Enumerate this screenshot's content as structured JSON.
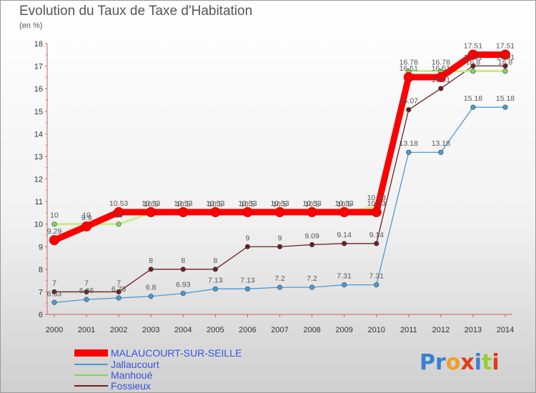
{
  "header": {
    "title": "Evolution du Taux de Taxe d'Habitation",
    "unit": "(en %)"
  },
  "logo": {
    "text": "Proxiti"
  },
  "colors": {
    "malaucourt": "#ff0000",
    "jallaucourt": "#4a9ad4",
    "manhoue": "#7ed957",
    "fossieux": "#6b1f1f",
    "legend_text": "#3355dd"
  },
  "chart_data": {
    "type": "line",
    "title": "Evolution du Taux de Taxe d'Habitation",
    "ylabel": "(en %)",
    "xlabel": "",
    "x": [
      "2000",
      "2001",
      "2002",
      "2003",
      "2004",
      "2005",
      "2006",
      "2007",
      "2008",
      "2009",
      "2010",
      "2011",
      "2012",
      "2013",
      "2014"
    ],
    "ylim": [
      6,
      18
    ],
    "yticks": [
      "6",
      "7",
      "8",
      "9",
      "10",
      "11",
      "12",
      "13",
      "14",
      "15",
      "16",
      "17",
      "18"
    ],
    "grid": false,
    "legend_position": "bottom-left",
    "series": [
      {
        "name": "MALAUCOURT-SUR-SEILLE",
        "color": "#ff0000",
        "values": [
          9.29,
          9.9,
          10.53,
          10.53,
          10.53,
          10.53,
          10.53,
          10.53,
          10.53,
          10.53,
          10.53,
          16.51,
          16.51,
          17.51,
          17.51
        ],
        "labels": [
          "9.29",
          "9.9",
          "10.53",
          "10.53",
          "10.53",
          "10.53",
          "10.53",
          "10.53",
          "10.53",
          "10.53",
          "10.53",
          "16.51",
          "16.51",
          "17.51",
          "17.51"
        ]
      },
      {
        "name": "Jallaucourt",
        "color": "#4a9ad4",
        "values": [
          6.53,
          6.66,
          6.73,
          6.8,
          6.93,
          7.13,
          7.13,
          7.2,
          7.2,
          7.31,
          7.31,
          13.18,
          13.18,
          15.18,
          15.18
        ],
        "labels": [
          "6.53",
          "6.66",
          "6.73",
          "6.8",
          "6.93",
          "7.13",
          "7.13",
          "7.2",
          "7.2",
          "7.31",
          "7.31",
          "13.18",
          "13.18",
          "15.18",
          "15.18"
        ]
      },
      {
        "name": "Manhoué",
        "color": "#7ed957",
        "values": [
          10,
          10,
          10,
          10.5,
          10.5,
          10.5,
          10.5,
          10.5,
          10.5,
          10.5,
          10.78,
          16.78,
          16.78,
          16.78,
          16.78
        ],
        "labels": [
          "10",
          "10",
          "10",
          "10.5",
          "10.5",
          "10.5",
          "10.5",
          "10.5",
          "10.5",
          "10.5",
          "10.78",
          "16.78",
          "16.78",
          "16.8",
          "16.8"
        ]
      },
      {
        "name": "Fossieux",
        "color": "#6b1f1f",
        "values": [
          7,
          7,
          7,
          8,
          8,
          8,
          9,
          9,
          9.09,
          9.14,
          9.14,
          15.07,
          16.01,
          17.01,
          17.01
        ],
        "labels": [
          "7",
          "7",
          "7",
          "8",
          "8",
          "8",
          "9",
          "9",
          "9.09",
          "9.14",
          "9.14",
          "15.07",
          "16.01",
          "17.01",
          "17.01"
        ]
      }
    ]
  }
}
